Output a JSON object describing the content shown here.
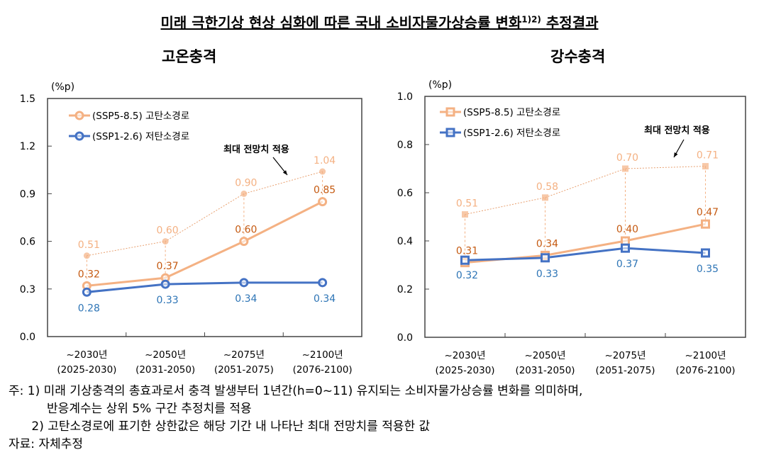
{
  "title": "미래 극한기상 현상 심화에 따른 국내 소비자물가상승률 변화",
  "title_sup": "1)2)",
  "title_suffix": "추정결과",
  "colors": {
    "high": "#f4b183",
    "high_label": "#c55a11",
    "high_max_label": "#f4b183",
    "low": "#4472c4",
    "low_label": "#2e75b6"
  },
  "chart_data": [
    {
      "type": "line",
      "title": "고온충격",
      "ylabel": "(%p)",
      "ylim": [
        0,
        1.5
      ],
      "yticks": [
        "0.0",
        "0.3",
        "0.6",
        "0.9",
        "1.2",
        "1.5"
      ],
      "marker": "circle",
      "categories": [
        "~2030년",
        "~2050년",
        "~2075년",
        "~2100년"
      ],
      "category_ranges": [
        "(2025-2030)",
        "(2031-2050)",
        "(2051-2075)",
        "(2076-2100)"
      ],
      "legend": "top-left",
      "annotation": "최대 전망치 적용",
      "series": [
        {
          "name": "(SSP5-8.5) 고탄소경로",
          "values": [
            0.32,
            0.37,
            0.6,
            0.85
          ],
          "labels": [
            "0.32",
            "0.37",
            "0.60",
            "0.85"
          ]
        },
        {
          "name": "(SSP1-2.6) 저탄소경로",
          "values": [
            0.28,
            0.33,
            0.34,
            0.34
          ],
          "labels": [
            "0.28",
            "0.33",
            "0.34",
            "0.34"
          ]
        },
        {
          "name": "",
          "max": true,
          "values": [
            0.51,
            0.6,
            0.9,
            1.04
          ],
          "labels": [
            "0.51",
            "0.60",
            "0.90",
            "1.04"
          ]
        }
      ]
    },
    {
      "type": "line",
      "title": "강수충격",
      "ylabel": "(%p)",
      "ylim": [
        0,
        1.0
      ],
      "yticks": [
        "0.0",
        "0.2",
        "0.4",
        "0.6",
        "0.8",
        "1.0"
      ],
      "marker": "square",
      "categories": [
        "~2030년",
        "~2050년",
        "~2075년",
        "~2100년"
      ],
      "category_ranges": [
        "(2025-2030)",
        "(2031-2050)",
        "(2051-2075)",
        "(2076-2100)"
      ],
      "legend": "top-left",
      "annotation": "최대 전망치 적용",
      "series": [
        {
          "name": "(SSP5-8.5) 고탄소경로",
          "values": [
            0.31,
            0.34,
            0.4,
            0.47
          ],
          "labels": [
            "0.31",
            "0.34",
            "0.40",
            "0.47"
          ]
        },
        {
          "name": "(SSP1-2.6) 저탄소경로",
          "values": [
            0.32,
            0.33,
            0.37,
            0.35
          ],
          "labels": [
            "0.32",
            "0.33",
            "0.37",
            "0.35"
          ]
        },
        {
          "name": "",
          "max": true,
          "values": [
            0.51,
            0.58,
            0.7,
            0.71
          ],
          "labels": [
            "0.51",
            "0.58",
            "0.70",
            "0.71"
          ]
        }
      ]
    }
  ],
  "notes": [
    "주: 1) 미래 기상충격의 총효과로서 충격 발생부터 1년간(h=0~11) 유지되는 소비자물가상승률 변화를 의미하며,",
    "          반응계수는 상위 5% 구간 추정치를 적용",
    "      2) 고탄소경로에 표기한 상한값은 해당 기간 내 나타난 최대 전망치를 적용한 값",
    "자료: 자체추정"
  ]
}
